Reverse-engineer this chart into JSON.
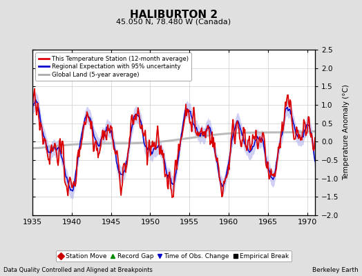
{
  "title": "HALIBURTON 2",
  "subtitle": "45.050 N, 78.480 W (Canada)",
  "xlabel_left": "Data Quality Controlled and Aligned at Breakpoints",
  "xlabel_right": "Berkeley Earth",
  "ylabel": "Temperature Anomaly (°C)",
  "xlim": [
    1935,
    1971
  ],
  "ylim": [
    -2.0,
    2.5
  ],
  "yticks": [
    -2,
    -1.5,
    -1,
    -0.5,
    0,
    0.5,
    1,
    1.5,
    2,
    2.5
  ],
  "xticks": [
    1935,
    1940,
    1945,
    1950,
    1955,
    1960,
    1965,
    1970
  ],
  "background_color": "#e0e0e0",
  "plot_bg_color": "#ffffff",
  "legend1_entries": [
    {
      "label": "This Temperature Station (12-month average)",
      "color": "#dd0000"
    },
    {
      "label": "Regional Expectation with 95% uncertainty",
      "color": "#0000cc"
    },
    {
      "label": "Global Land (5-year average)",
      "color": "#aaaaaa"
    }
  ],
  "legend2_entries": [
    {
      "label": "Station Move",
      "marker": "D",
      "color": "#cc0000"
    },
    {
      "label": "Record Gap",
      "marker": "^",
      "color": "#008800"
    },
    {
      "label": "Time of Obs. Change",
      "marker": "v",
      "color": "#0000cc"
    },
    {
      "label": "Empirical Break",
      "marker": "s",
      "color": "#000000"
    }
  ],
  "seed": 42
}
